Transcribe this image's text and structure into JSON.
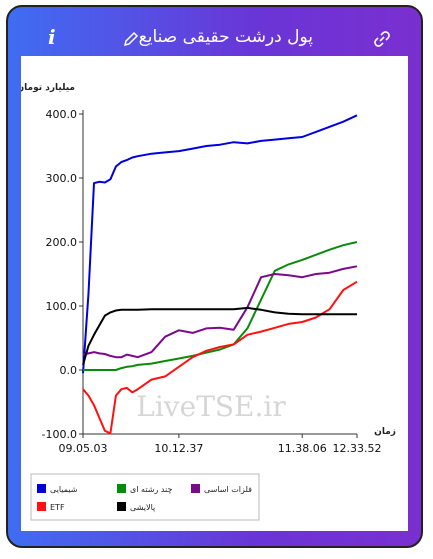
{
  "header": {
    "title": "پول درشت حقیقی صنایع",
    "info_icon": "info-icon",
    "edit_icon": "pencil-icon",
    "link_icon": "link-icon"
  },
  "watermark": "LiveTSE.ir",
  "colors": {
    "gradient_start": "#3f6df2",
    "gradient_end": "#7a2fd0"
  },
  "chart_data": {
    "type": "line",
    "title": "",
    "xlabel": "زمان",
    "ylabel": "میلیارد تومان",
    "ylim": [
      -100,
      400
    ],
    "yticks": [
      "-100.0",
      "0.0",
      "100.0",
      "200.0",
      "300.0",
      "400.0"
    ],
    "xticks": [
      "09.05.03",
      "10.12.37",
      "11.38.06",
      "12.33.52"
    ],
    "x": [
      0,
      2,
      4,
      6,
      8,
      10,
      12,
      14,
      16,
      18,
      20,
      25,
      30,
      35,
      40,
      45,
      50,
      55,
      60,
      65,
      70,
      75,
      80,
      85,
      90,
      95,
      100
    ],
    "series": [
      {
        "name": "شیمیایی",
        "color": "#0000dd",
        "values": [
          -5,
          120,
          292,
          294,
          293,
          298,
          318,
          325,
          328,
          332,
          334,
          338,
          340,
          342,
          346,
          350,
          352,
          356,
          354,
          358,
          360,
          362,
          364,
          372,
          380,
          388,
          398
        ]
      },
      {
        "name": "چند رشته ای",
        "color": "#0a8a0a",
        "values": [
          0,
          0,
          0,
          0,
          0,
          0,
          0,
          3,
          5,
          6,
          8,
          10,
          14,
          18,
          22,
          27,
          32,
          40,
          65,
          110,
          155,
          165,
          172,
          180,
          188,
          195,
          200
        ]
      },
      {
        "name": "فلزات اساسی",
        "color": "#7b0a8a",
        "values": [
          24,
          26,
          28,
          26,
          25,
          22,
          20,
          20,
          24,
          22,
          20,
          28,
          52,
          62,
          58,
          65,
          66,
          63,
          98,
          145,
          150,
          148,
          145,
          150,
          152,
          158,
          162
        ]
      },
      {
        "name": "ETF",
        "color": "#ff1111",
        "values": [
          -30,
          -40,
          -55,
          -75,
          -95,
          -99,
          -40,
          -30,
          -28,
          -35,
          -30,
          -15,
          -10,
          5,
          20,
          30,
          36,
          40,
          55,
          60,
          66,
          72,
          75,
          82,
          95,
          125,
          138
        ]
      },
      {
        "name": "پالایشی",
        "color": "#000000",
        "values": [
          8,
          38,
          55,
          70,
          85,
          90,
          93,
          94,
          94,
          94,
          94,
          95,
          95,
          95,
          95,
          95,
          95,
          95,
          97,
          94,
          90,
          88,
          87,
          87,
          87,
          87,
          87
        ]
      }
    ],
    "legend": [
      {
        "name": "شیمیایی",
        "color": "#0000dd"
      },
      {
        "name": "چند رشته ای",
        "color": "#0a8a0a"
      },
      {
        "name": "فلزات اساسی",
        "color": "#7b0a8a"
      },
      {
        "name": "ETF",
        "color": "#ff1111"
      },
      {
        "name": "پالایشی",
        "color": "#000000"
      }
    ],
    "legend_position": "bottom",
    "grid": false
  }
}
